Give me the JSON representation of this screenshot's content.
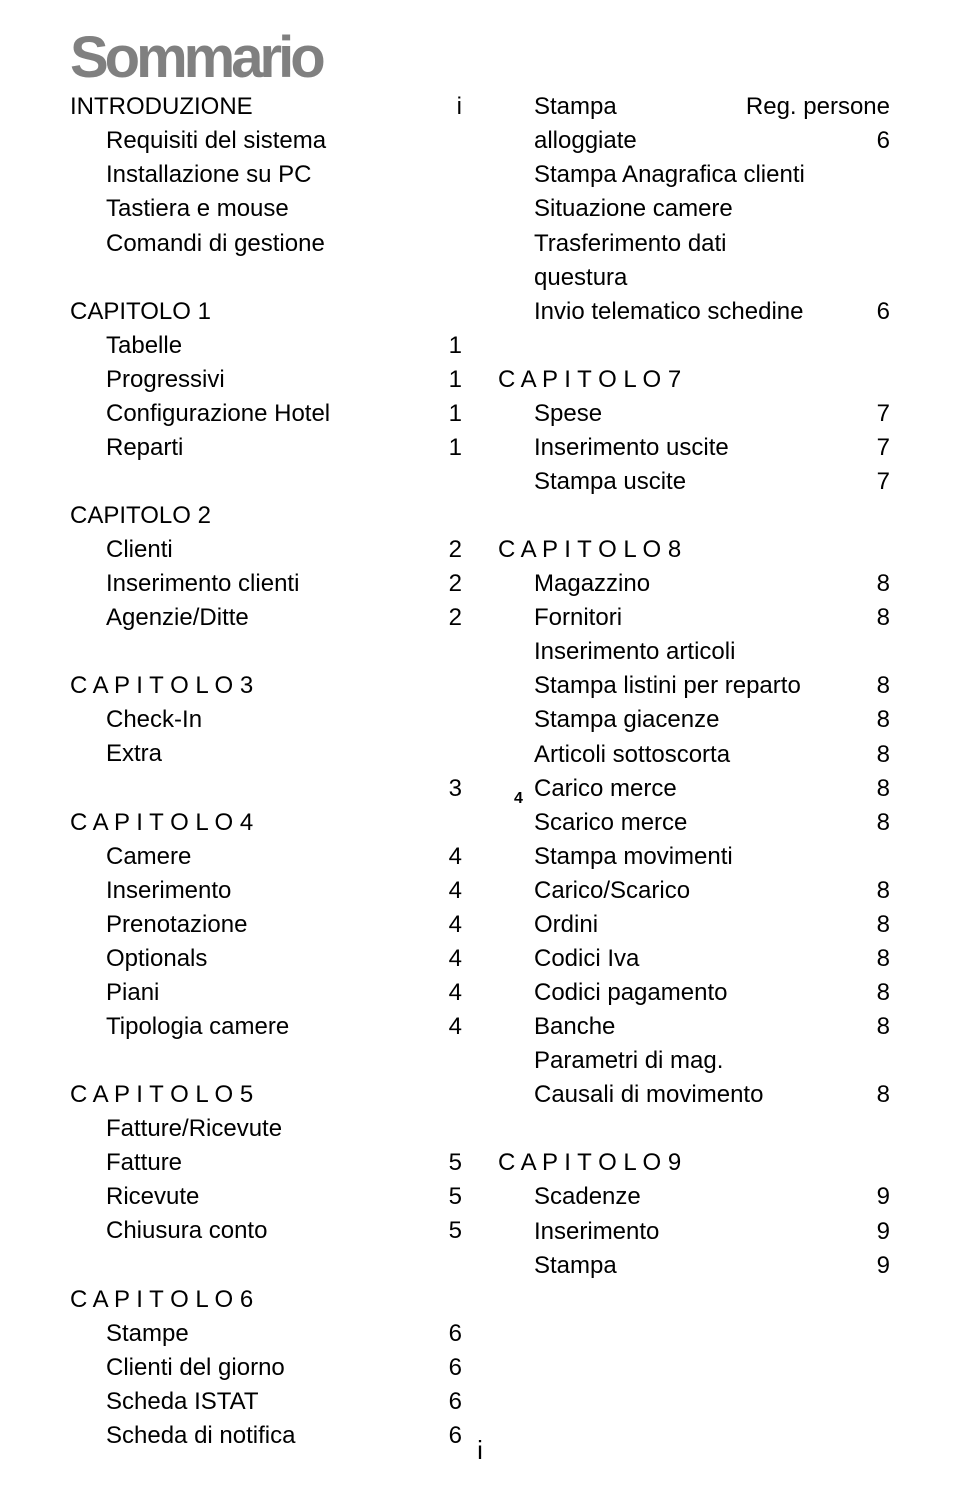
{
  "title": "Sommario",
  "footer": "i",
  "gap_marker": "4",
  "colors": {
    "title": "#808080",
    "body_text": "#000000",
    "background": "#ffffff"
  },
  "typography": {
    "title_fontsize": 58,
    "body_fontsize": 24,
    "title_font": "Arial Black",
    "body_font": "Arial"
  },
  "left_column": [
    {
      "type": "entry",
      "label": "INTRODUZIONE",
      "page": "i"
    },
    {
      "type": "entry",
      "label": "Requisiti del sistema",
      "page": "",
      "indent": true
    },
    {
      "type": "entry",
      "label": "Installazione su PC",
      "page": "",
      "indent": true
    },
    {
      "type": "entry",
      "label": "Tastiera e mouse",
      "page": "",
      "indent": true
    },
    {
      "type": "entry",
      "label": "Comandi di gestione",
      "page": "",
      "indent": true
    },
    {
      "type": "spacer"
    },
    {
      "type": "entry",
      "label": "CAPITOLO 1",
      "page": ""
    },
    {
      "type": "entry",
      "label": "Tabelle",
      "page": "1",
      "indent": true
    },
    {
      "type": "entry",
      "label": "Progressivi",
      "page": "1",
      "indent": true
    },
    {
      "type": "entry",
      "label": "Configurazione Hotel",
      "page": "1",
      "indent": true
    },
    {
      "type": "entry",
      "label": "Reparti",
      "page": "1",
      "indent": true
    },
    {
      "type": "spacer"
    },
    {
      "type": "entry",
      "label": "CAPITOLO 2",
      "page": ""
    },
    {
      "type": "entry",
      "label": "Clienti",
      "page": "2",
      "indent": true
    },
    {
      "type": "entry",
      "label": "Inserimento clienti",
      "page": "2",
      "indent": true
    },
    {
      "type": "entry",
      "label": "Agenzie/Ditte",
      "page": "2",
      "indent": true
    },
    {
      "type": "spacer"
    },
    {
      "type": "chapter",
      "label": "C A P I T O L O  3",
      "page": ""
    },
    {
      "type": "entry",
      "label": "Check-In",
      "page": "",
      "indent": true
    },
    {
      "type": "entry",
      "label": "Extra",
      "page": "",
      "indent": true
    },
    {
      "type": "entry",
      "label": "",
      "page": "3",
      "indent": true
    },
    {
      "type": "chapter",
      "label": "C A P I T O L O  4",
      "page": ""
    },
    {
      "type": "entry",
      "label": "Camere",
      "page": "4",
      "indent": true
    },
    {
      "type": "entry",
      "label": "Inserimento",
      "page": "4",
      "indent": true
    },
    {
      "type": "entry",
      "label": "Prenotazione",
      "page": "4",
      "indent": true
    },
    {
      "type": "entry",
      "label": "Optionals",
      "page": "4",
      "indent": true
    },
    {
      "type": "entry",
      "label": "Piani",
      "page": "4",
      "indent": true
    },
    {
      "type": "entry",
      "label": "Tipologia camere",
      "page": "4",
      "indent": true
    },
    {
      "type": "spacer"
    },
    {
      "type": "chapter",
      "label": "C A P I T O L O  5",
      "page": ""
    },
    {
      "type": "entry",
      "label": "Fatture/Ricevute",
      "page": "",
      "indent": true
    },
    {
      "type": "entry",
      "label": "Fatture",
      "page": "5",
      "indent": true
    },
    {
      "type": "entry",
      "label": "Ricevute",
      "page": "5",
      "indent": true
    },
    {
      "type": "entry",
      "label": "Chiusura conto",
      "page": "5",
      "indent": true
    },
    {
      "type": "spacer"
    },
    {
      "type": "chapter",
      "label": "C A P I T O L O  6",
      "page": ""
    },
    {
      "type": "entry",
      "label": "Stampe",
      "page": "6",
      "indent": true
    },
    {
      "type": "entry",
      "label": "Clienti del giorno",
      "page": "6",
      "indent": true
    },
    {
      "type": "entry",
      "label": "Scheda ISTAT",
      "page": "6",
      "indent": true
    },
    {
      "type": "entry",
      "label": "Scheda di notifica",
      "page": "6",
      "indent": true
    }
  ],
  "right_column": [
    {
      "type": "split",
      "left": "Stampa",
      "right": "Reg.   persone",
      "indent": true
    },
    {
      "type": "entry",
      "label": "alloggiate",
      "page": "6",
      "indent": true
    },
    {
      "type": "entry",
      "label": "Stampa Anagrafica clienti",
      "page": "",
      "indent": true
    },
    {
      "type": "entry",
      "label": "Situazione camere",
      "page": "",
      "indent": true
    },
    {
      "type": "entry",
      "label": "Trasferimento dati",
      "page": "",
      "indent": true
    },
    {
      "type": "entry",
      "label": "questura",
      "page": "",
      "indent": true
    },
    {
      "type": "entry",
      "label": "Invio telematico schedine",
      "page": "6",
      "indent": true
    },
    {
      "type": "spacer"
    },
    {
      "type": "chapter",
      "label": "C A P I T O L O  7",
      "page": ""
    },
    {
      "type": "entry",
      "label": "Spese",
      "page": "7",
      "indent": true
    },
    {
      "type": "entry",
      "label": "Inserimento uscite",
      "page": "7",
      "indent": true
    },
    {
      "type": "entry",
      "label": "Stampa uscite",
      "page": "7",
      "indent": true
    },
    {
      "type": "spacer"
    },
    {
      "type": "chapter",
      "label": "C A P I T O L O  8",
      "page": ""
    },
    {
      "type": "entry",
      "label": "Magazzino",
      "page": "8",
      "indent": true
    },
    {
      "type": "entry",
      "label": "Fornitori",
      "page": "8",
      "indent": true
    },
    {
      "type": "entry",
      "label": "Inserimento articoli",
      "page": "",
      "indent": true
    },
    {
      "type": "entry",
      "label": "Stampa listini per reparto",
      "page": "8",
      "indent": true
    },
    {
      "type": "entry",
      "label": "Stampa giacenze",
      "page": "8",
      "indent": true
    },
    {
      "type": "entry",
      "label": "Articoli sottoscorta",
      "page": "8",
      "indent": true
    },
    {
      "type": "entry",
      "label": "Carico merce",
      "page": "8",
      "indent": true
    },
    {
      "type": "entry",
      "label": "Scarico merce",
      "page": "8",
      "indent": true
    },
    {
      "type": "entry",
      "label": "Stampa movimenti",
      "page": "",
      "indent": true
    },
    {
      "type": "entry",
      "label": "Carico/Scarico",
      "page": "8",
      "indent": true
    },
    {
      "type": "entry",
      "label": "Ordini",
      "page": "8",
      "indent": true
    },
    {
      "type": "entry",
      "label": "Codici Iva",
      "page": "8",
      "indent": true
    },
    {
      "type": "entry",
      "label": "Codici pagamento",
      "page": "8",
      "indent": true
    },
    {
      "type": "entry",
      "label": "Banche",
      "page": "8",
      "indent": true
    },
    {
      "type": "entry",
      "label": "Parametri di mag.",
      "page": "",
      "indent": true
    },
    {
      "type": "entry",
      "label": "Causali di movimento",
      "page": "8",
      "indent": true
    },
    {
      "type": "spacer"
    },
    {
      "type": "chapter",
      "label": "C A P I T O L O  9",
      "page": ""
    },
    {
      "type": "entry",
      "label": "Scadenze",
      "page": "9",
      "indent": true
    },
    {
      "type": "entry",
      "label": "Inserimento",
      "page": "9",
      "indent": true
    },
    {
      "type": "entry",
      "label": "Stampa",
      "page": "9",
      "indent": true
    }
  ]
}
